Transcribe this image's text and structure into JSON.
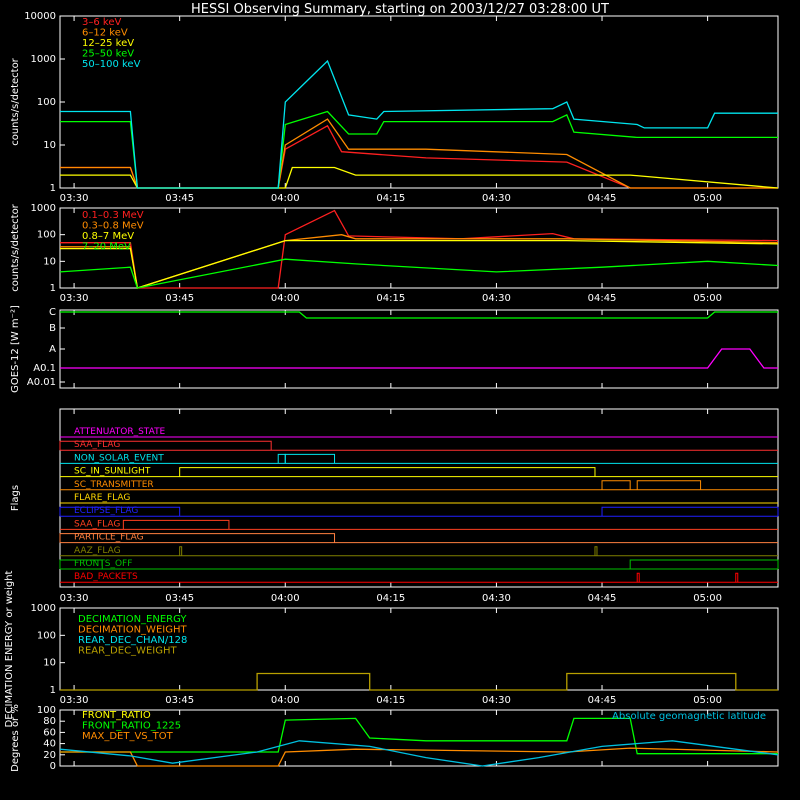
{
  "title": "HESSI Observing Summary, starting on 2003/12/27 03:28:00 UT",
  "time_ticks": [
    "03:30",
    "03:45",
    "04:00",
    "04:15",
    "04:30",
    "04:45",
    "05:00"
  ],
  "chart_data": [
    {
      "type": "line",
      "panel": "Energy bands",
      "ylabel": "counts/s/detector",
      "yscale": "log",
      "ylim": [
        1,
        10000
      ],
      "yticks": [
        "1",
        "10",
        "100",
        "1000",
        "10000"
      ],
      "xlim": [
        "03:28",
        "05:10"
      ],
      "series": [
        {
          "name": "3–6 keV",
          "color": "#ff2020",
          "points": [
            [
              "03:28",
              3
            ],
            [
              "03:38",
              3
            ],
            [
              "03:39",
              1
            ],
            [
              "03:59",
              1
            ],
            [
              "04:00",
              8
            ],
            [
              "04:06",
              28
            ],
            [
              "04:08",
              7
            ],
            [
              "04:20",
              5
            ],
            [
              "04:40",
              4
            ],
            [
              "04:49",
              1
            ],
            [
              "05:10",
              1
            ]
          ]
        },
        {
          "name": "6–12 keV",
          "color": "#ff8c00",
          "points": [
            [
              "03:28",
              3
            ],
            [
              "03:38",
              3
            ],
            [
              "03:39",
              1
            ],
            [
              "03:59",
              1
            ],
            [
              "04:00",
              10
            ],
            [
              "04:06",
              40
            ],
            [
              "04:09",
              8
            ],
            [
              "04:20",
              8
            ],
            [
              "04:40",
              6
            ],
            [
              "04:49",
              1
            ],
            [
              "05:10",
              1
            ]
          ]
        },
        {
          "name": "12–25 keV",
          "color": "#ffff00",
          "points": [
            [
              "03:28",
              2
            ],
            [
              "03:38",
              2
            ],
            [
              "03:39",
              1
            ],
            [
              "04:00",
              1
            ],
            [
              "04:01",
              3
            ],
            [
              "04:07",
              3
            ],
            [
              "04:10",
              2
            ],
            [
              "04:49",
              2
            ],
            [
              "05:10",
              1
            ]
          ]
        },
        {
          "name": "25–50 keV",
          "color": "#00ff00",
          "points": [
            [
              "03:28",
              35
            ],
            [
              "03:38",
              35
            ],
            [
              "03:39",
              1
            ],
            [
              "03:59",
              1
            ],
            [
              "04:00",
              30
            ],
            [
              "04:06",
              60
            ],
            [
              "04:09",
              18
            ],
            [
              "04:13",
              18
            ],
            [
              "04:14",
              35
            ],
            [
              "04:38",
              35
            ],
            [
              "04:40",
              50
            ],
            [
              "04:41",
              20
            ],
            [
              "04:50",
              15
            ],
            [
              "05:10",
              15
            ]
          ]
        },
        {
          "name": "50–100 keV",
          "color": "#00e5ee",
          "points": [
            [
              "03:28",
              60
            ],
            [
              "03:38",
              60
            ],
            [
              "03:39",
              1
            ],
            [
              "03:59",
              1
            ],
            [
              "04:00",
              100
            ],
            [
              "04:03",
              300
            ],
            [
              "04:06",
              900
            ],
            [
              "04:09",
              50
            ],
            [
              "04:13",
              40
            ],
            [
              "04:14",
              60
            ],
            [
              "04:38",
              70
            ],
            [
              "04:40",
              100
            ],
            [
              "04:41",
              40
            ],
            [
              "04:50",
              30
            ],
            [
              "04:51",
              25
            ],
            [
              "05:00",
              25
            ],
            [
              "05:01",
              55
            ],
            [
              "05:10",
              55
            ]
          ]
        }
      ]
    },
    {
      "type": "line",
      "panel": "Gamma bands",
      "ylabel": "counts/s/detector",
      "yscale": "log",
      "ylim": [
        1,
        1000
      ],
      "yticks": [
        "1",
        "10",
        "100",
        "1000"
      ],
      "xlim": [
        "03:28",
        "05:10"
      ],
      "series": [
        {
          "name": "0.1–0.3 MeV",
          "color": "#ff2020",
          "points": [
            [
              "03:28",
              50
            ],
            [
              "03:38",
              50
            ],
            [
              "03:39",
              1
            ],
            [
              "03:59",
              1
            ],
            [
              "04:00",
              100
            ],
            [
              "04:07",
              800
            ],
            [
              "04:09",
              90
            ],
            [
              "04:25",
              70
            ],
            [
              "04:38",
              110
            ],
            [
              "04:41",
              70
            ],
            [
              "05:10",
              60
            ]
          ]
        },
        {
          "name": "0.3–0.8 MeV",
          "color": "#ff8c00",
          "points": [
            [
              "03:28",
              35
            ],
            [
              "03:38",
              35
            ],
            [
              "03:39",
              1
            ],
            [
              "04:00",
              60
            ],
            [
              "04:08",
              100
            ],
            [
              "04:10",
              70
            ],
            [
              "04:40",
              70
            ],
            [
              "05:10",
              50
            ]
          ]
        },
        {
          "name": "0.8–7 MeV",
          "color": "#ffff00",
          "points": [
            [
              "03:28",
              30
            ],
            [
              "03:38",
              30
            ],
            [
              "03:39",
              1
            ],
            [
              "04:00",
              60
            ],
            [
              "04:08",
              60
            ],
            [
              "04:40",
              60
            ],
            [
              "05:10",
              45
            ]
          ]
        },
        {
          "name": "7–20 MeV",
          "color": "#00ff00",
          "points": [
            [
              "03:28",
              4
            ],
            [
              "03:38",
              6
            ],
            [
              "03:39",
              1
            ],
            [
              "04:00",
              12
            ],
            [
              "04:10",
              8
            ],
            [
              "04:30",
              4
            ],
            [
              "04:45",
              6
            ],
            [
              "05:00",
              10
            ],
            [
              "05:10",
              7
            ]
          ]
        }
      ]
    },
    {
      "type": "line",
      "panel": "GOES-12",
      "ylabel": "GOES-12 [W m⁻²]",
      "yticks": [
        "A0.01",
        "A0.1",
        "A",
        "B",
        "C"
      ],
      "xlim": [
        "03:28",
        "05:10"
      ],
      "series": [
        {
          "color": "#00ff00",
          "points": [
            [
              "03:28",
              "C"
            ],
            [
              "04:02",
              "C"
            ],
            [
              "04:03",
              "C-"
            ],
            [
              "05:00",
              "C-"
            ],
            [
              "05:01",
              "C"
            ],
            [
              "05:10",
              "C"
            ]
          ]
        },
        {
          "color": "#ff00ff",
          "points": [
            [
              "03:28",
              "A0.1"
            ],
            [
              "05:00",
              "A0.1"
            ],
            [
              "05:02",
              "A"
            ],
            [
              "05:06",
              "A"
            ],
            [
              "05:08",
              "A0.1"
            ],
            [
              "05:10",
              "A0.1"
            ]
          ]
        }
      ]
    },
    {
      "type": "line",
      "panel": "Flags",
      "ylabel": "Flags",
      "xlim": [
        "03:28",
        "05:10"
      ],
      "flags": [
        {
          "name": "ATTENUATOR_STATE",
          "color": "#ff00ff",
          "on": []
        },
        {
          "name": "SAA_FLAG",
          "color": "#ff3030",
          "on": [
            [
              "03:28",
              "03:58"
            ]
          ]
        },
        {
          "name": "NON_SOLAR_EVENT",
          "color": "#00e5ee",
          "on": [
            [
              "03:59",
              "04:00"
            ],
            [
              "04:00",
              "04:07"
            ]
          ]
        },
        {
          "name": "SC_IN_SUNLIGHT",
          "color": "#ffff00",
          "on": [
            [
              "03:45",
              "04:44"
            ]
          ]
        },
        {
          "name": "SC_TRANSMITTER",
          "color": "#ff8c00",
          "on": [
            [
              "04:45",
              "04:49"
            ],
            [
              "04:50",
              "04:59"
            ]
          ]
        },
        {
          "name": "FLARE_FLAG",
          "color": "#ffd700",
          "on": []
        },
        {
          "name": "ECLIPSE_FLAG",
          "color": "#2020ff",
          "on": [
            [
              "03:28",
              "03:45"
            ],
            [
              "04:45",
              "05:10"
            ]
          ]
        },
        {
          "name": "SAA_FLAG",
          "color": "#ff4020",
          "on": [
            [
              "03:37",
              "03:52"
            ]
          ]
        },
        {
          "name": "PARTICLE_FLAG",
          "color": "#ff8040",
          "on": [
            [
              "03:28",
              "04:07"
            ]
          ]
        },
        {
          "name": "AAZ_FLAG",
          "color": "#808000",
          "on": [
            [
              "03:45",
              "03:45"
            ],
            [
              "04:44",
              "04:44"
            ]
          ]
        },
        {
          "name": "FRONTS_OFF",
          "color": "#00c000",
          "on": [
            [
              "03:28",
              "03:34"
            ],
            [
              "04:49",
              "05:10"
            ]
          ]
        },
        {
          "name": "BAD_PACKETS",
          "color": "#ff0000",
          "on": [
            [
              "04:50",
              "04:50"
            ],
            [
              "05:04",
              "05:04"
            ]
          ]
        }
      ]
    },
    {
      "type": "line",
      "panel": "Decimation",
      "ylabel": "DECIMATION ENERGY or weight",
      "yscale": "log",
      "ylim": [
        1,
        1000
      ],
      "yticks": [
        "1",
        "10",
        "100",
        "1000"
      ],
      "xlim": [
        "03:28",
        "05:10"
      ],
      "series": [
        {
          "name": "DECIMATION_ENERGY",
          "color": "#00ff00",
          "points": []
        },
        {
          "name": "DECIMATION_WEIGHT",
          "color": "#ff8c00",
          "points": []
        },
        {
          "name": "REAR_DEC_CHAN/128",
          "color": "#00e5ee",
          "points": []
        },
        {
          "name": "REAR_DEC_WEIGHT",
          "color": "#b8a000",
          "points": [
            [
              "03:28",
              1
            ],
            [
              "03:56",
              1
            ],
            [
              "03:56",
              4
            ],
            [
              "04:12",
              4
            ],
            [
              "04:12",
              1
            ],
            [
              "04:40",
              1
            ],
            [
              "04:40",
              4
            ],
            [
              "05:04",
              4
            ],
            [
              "05:04",
              1
            ],
            [
              "05:10",
              1
            ]
          ]
        }
      ]
    },
    {
      "type": "line",
      "panel": "Ratios",
      "ylabel": "Degrees or %",
      "ylim": [
        0,
        100
      ],
      "yticks": [
        "0",
        "20",
        "40",
        "60",
        "80",
        "100"
      ],
      "xlim": [
        "03:28",
        "05:10"
      ],
      "series": [
        {
          "name": "FRONT_RATIO",
          "color": "#ffff00",
          "points": []
        },
        {
          "name": "FRONT_RATIO_1225",
          "color": "#00ff00",
          "points": [
            [
              "03:28",
              25
            ],
            [
              "03:38",
              25
            ],
            [
              "03:59",
              25
            ],
            [
              "04:00",
              82
            ],
            [
              "04:10",
              85
            ],
            [
              "04:12",
              50
            ],
            [
              "04:20",
              45
            ],
            [
              "04:40",
              45
            ],
            [
              "04:41",
              85
            ],
            [
              "04:49",
              85
            ],
            [
              "04:50",
              22
            ],
            [
              "05:10",
              22
            ]
          ]
        },
        {
          "name": "MAX_DET_VS_TOT",
          "color": "#ff8c00",
          "points": [
            [
              "03:28",
              25
            ],
            [
              "03:38",
              25
            ],
            [
              "03:39",
              0
            ],
            [
              "03:59",
              0
            ],
            [
              "04:00",
              25
            ],
            [
              "04:10",
              30
            ],
            [
              "04:40",
              25
            ],
            [
              "04:49",
              32
            ],
            [
              "05:10",
              25
            ]
          ]
        },
        {
          "name": "Absolute geomagnetic latitude",
          "color": "#00c0e0",
          "points": [
            [
              "03:28",
              30
            ],
            [
              "03:38",
              18
            ],
            [
              "03:44",
              5
            ],
            [
              "03:56",
              25
            ],
            [
              "04:02",
              45
            ],
            [
              "04:12",
              35
            ],
            [
              "04:20",
              15
            ],
            [
              "04:28",
              0
            ],
            [
              "04:36",
              15
            ],
            [
              "04:45",
              35
            ],
            [
              "04:55",
              45
            ],
            [
              "05:10",
              20
            ]
          ]
        }
      ]
    }
  ]
}
